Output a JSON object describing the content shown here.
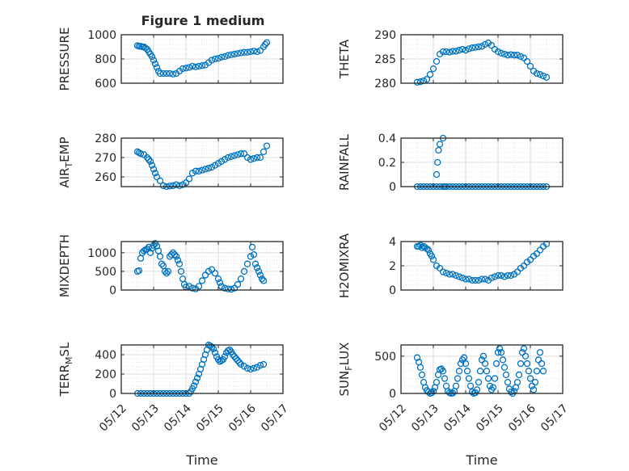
{
  "title": "Figure 1 medium",
  "colors": {
    "marker": "#0072BD",
    "axes": "#262626",
    "grid": "#dedede"
  },
  "chart_data": [
    {
      "type": "scatter",
      "ylabel": "PRESSURE",
      "ylim": [
        600,
        1000
      ],
      "yticks": [
        600,
        800,
        1000
      ],
      "xlim": [
        "05/12",
        "05/17"
      ],
      "xtick_labels": [],
      "grid": true,
      "marker": "open-circle",
      "series": [
        {
          "x": [
            12.5,
            12.55,
            12.6,
            12.65,
            12.7,
            12.75,
            12.8,
            12.85,
            12.9,
            12.95,
            13.0,
            13.05,
            13.1,
            13.15,
            13.2,
            13.3,
            13.4,
            13.5,
            13.6,
            13.7,
            13.8,
            13.9,
            14.0,
            14.1,
            14.2,
            14.3,
            14.4,
            14.5,
            14.6,
            14.7,
            14.8,
            14.9,
            15.0,
            15.1,
            15.2,
            15.3,
            15.4,
            15.5,
            15.6,
            15.7,
            15.8,
            15.9,
            16.0,
            16.1,
            16.2,
            16.3,
            16.4,
            16.45,
            16.5
          ],
          "y": [
            910,
            905,
            905,
            900,
            900,
            890,
            880,
            860,
            840,
            820,
            790,
            760,
            730,
            700,
            680,
            680,
            680,
            680,
            675,
            680,
            700,
            720,
            725,
            730,
            740,
            735,
            740,
            745,
            750,
            770,
            790,
            800,
            805,
            815,
            820,
            830,
            835,
            840,
            845,
            850,
            855,
            855,
            860,
            865,
            860,
            870,
            900,
            920,
            935
          ]
        }
      ]
    },
    {
      "type": "scatter",
      "ylabel": "THETA",
      "ylim": [
        280,
        290
      ],
      "yticks": [
        280,
        285,
        290
      ],
      "xlim": [
        "05/12",
        "05/17"
      ],
      "xtick_labels": [],
      "grid": true,
      "marker": "open-circle",
      "series": [
        {
          "x": [
            12.5,
            12.6,
            12.7,
            12.8,
            12.9,
            13.0,
            13.1,
            13.2,
            13.3,
            13.4,
            13.5,
            13.6,
            13.7,
            13.8,
            13.9,
            14.0,
            14.1,
            14.2,
            14.3,
            14.4,
            14.5,
            14.6,
            14.7,
            14.8,
            14.9,
            15.0,
            15.1,
            15.2,
            15.3,
            15.4,
            15.5,
            15.6,
            15.7,
            15.8,
            15.9,
            16.0,
            16.1,
            16.2,
            16.3,
            16.4,
            16.5
          ],
          "y": [
            280.2,
            280.3,
            280.5,
            280.8,
            281.8,
            283,
            284.5,
            286,
            286.5,
            286.5,
            286.4,
            286.6,
            286.6,
            286.8,
            287,
            286.8,
            287.1,
            287.3,
            287.4,
            287.5,
            287.6,
            288,
            288.3,
            287.8,
            287,
            286.5,
            286.2,
            286,
            285.8,
            285.9,
            285.8,
            285.8,
            285.5,
            285.2,
            284.5,
            283.5,
            282.5,
            282,
            281.8,
            281.5,
            281.2
          ]
        }
      ]
    },
    {
      "type": "scatter",
      "ylabel": "AIR_TEMP",
      "ylim": [
        255,
        280
      ],
      "yticks": [
        260,
        270,
        280
      ],
      "xlim": [
        "05/12",
        "05/17"
      ],
      "xtick_labels": [],
      "grid": true,
      "marker": "open-circle",
      "series": [
        {
          "x": [
            12.5,
            12.55,
            12.6,
            12.7,
            12.8,
            12.85,
            12.9,
            12.95,
            13.0,
            13.05,
            13.1,
            13.2,
            13.3,
            13.4,
            13.5,
            13.6,
            13.7,
            13.8,
            13.9,
            14.0,
            14.1,
            14.2,
            14.3,
            14.4,
            14.5,
            14.6,
            14.7,
            14.8,
            14.9,
            15.0,
            15.1,
            15.2,
            15.3,
            15.4,
            15.5,
            15.6,
            15.7,
            15.8,
            15.9,
            16.0,
            16.1,
            16.2,
            16.3,
            16.4,
            16.5
          ],
          "y": [
            273,
            272.5,
            272,
            271.5,
            270,
            269,
            268,
            266,
            264,
            262,
            260,
            258,
            255.5,
            255,
            255.3,
            255.5,
            256,
            255.5,
            256,
            257,
            259,
            262,
            263,
            263,
            263.5,
            264,
            264.5,
            265,
            266,
            267,
            268,
            269,
            270,
            270.5,
            271,
            271.5,
            272,
            272,
            270,
            269,
            269.5,
            270,
            270,
            273,
            276
          ]
        }
      ]
    },
    {
      "type": "scatter",
      "ylabel": "RAINFALL",
      "ylim": [
        0,
        0.4
      ],
      "yticks": [
        0,
        0.2,
        0.4
      ],
      "xlim": [
        "05/12",
        "05/17"
      ],
      "xtick_labels": [],
      "grid": true,
      "marker": "open-circle",
      "series": [
        {
          "x": [
            12.5,
            12.6,
            12.7,
            12.8,
            12.9,
            13.0,
            13.1,
            13.2,
            13.3,
            13.4,
            13.5,
            13.6,
            13.7,
            13.8,
            13.9,
            14.0,
            14.1,
            14.2,
            14.3,
            14.4,
            14.5,
            14.6,
            14.7,
            14.8,
            14.9,
            15.0,
            15.1,
            15.2,
            15.3,
            15.4,
            15.5,
            15.6,
            15.7,
            15.8,
            15.9,
            16.0,
            16.1,
            16.2,
            16.3,
            16.4,
            16.5,
            13.1,
            13.13,
            13.16,
            13.2,
            13.3,
            13.35
          ],
          "y": [
            0,
            0,
            0,
            0,
            0,
            0,
            0,
            0,
            0,
            0,
            0,
            0,
            0,
            0,
            0,
            0,
            0,
            0,
            0,
            0,
            0,
            0,
            0,
            0,
            0,
            0,
            0,
            0,
            0,
            0,
            0,
            0,
            0,
            0,
            0,
            0,
            0,
            0,
            0,
            0,
            0,
            0.1,
            0.2,
            0.3,
            0.35,
            0.4,
            0
          ]
        }
      ]
    },
    {
      "type": "scatter",
      "ylabel": "MIXDEPTH",
      "ylim": [
        0,
        1300
      ],
      "yticks": [
        0,
        500,
        1000
      ],
      "xlim": [
        "05/12",
        "05/17"
      ],
      "xtick_labels": [],
      "grid": true,
      "marker": "open-circle",
      "series": [
        {
          "x": [
            12.5,
            12.55,
            12.6,
            12.65,
            12.7,
            12.75,
            12.8,
            12.85,
            12.9,
            12.95,
            13.0,
            13.05,
            13.1,
            13.15,
            13.2,
            13.25,
            13.3,
            13.35,
            13.4,
            13.45,
            13.5,
            13.55,
            13.6,
            13.65,
            13.7,
            13.75,
            13.8,
            13.85,
            13.9,
            13.95,
            14.0,
            14.1,
            14.2,
            14.3,
            14.4,
            14.5,
            14.6,
            14.7,
            14.8,
            14.9,
            15.0,
            15.05,
            15.1,
            15.2,
            15.3,
            15.4,
            15.5,
            15.6,
            15.7,
            15.8,
            15.9,
            16.0,
            16.05,
            16.1,
            16.15,
            16.2,
            16.25,
            16.3,
            16.35,
            16.4
          ],
          "y": [
            500,
            520,
            850,
            1000,
            1050,
            1080,
            1100,
            1150,
            1000,
            1120,
            1200,
            1250,
            1180,
            1050,
            900,
            700,
            650,
            500,
            450,
            500,
            900,
            950,
            1000,
            950,
            900,
            800,
            700,
            500,
            300,
            150,
            80,
            100,
            50,
            30,
            100,
            250,
            400,
            500,
            550,
            450,
            300,
            200,
            100,
            50,
            30,
            20,
            50,
            150,
            300,
            500,
            700,
            900,
            1150,
            950,
            700,
            600,
            500,
            400,
            300,
            250
          ]
        }
      ]
    },
    {
      "type": "scatter",
      "ylabel": "H2OMIXRA",
      "ylim": [
        0,
        4
      ],
      "yticks": [
        0,
        2,
        4
      ],
      "xlim": [
        "05/12",
        "05/17"
      ],
      "xtick_labels": [],
      "grid": true,
      "marker": "open-circle",
      "series": [
        {
          "x": [
            12.5,
            12.55,
            12.6,
            12.65,
            12.7,
            12.75,
            12.8,
            12.85,
            12.9,
            12.95,
            13.0,
            13.1,
            13.2,
            13.3,
            13.4,
            13.5,
            13.6,
            13.7,
            13.8,
            13.9,
            14.0,
            14.1,
            14.2,
            14.3,
            14.4,
            14.5,
            14.6,
            14.7,
            14.8,
            14.9,
            15.0,
            15.1,
            15.2,
            15.3,
            15.4,
            15.5,
            15.6,
            15.7,
            15.8,
            15.9,
            16.0,
            16.1,
            16.2,
            16.3,
            16.4,
            16.5
          ],
          "y": [
            3.6,
            3.6,
            3.7,
            3.5,
            3.6,
            3.5,
            3.4,
            3.3,
            3,
            2.8,
            2.5,
            2,
            1.8,
            1.5,
            1.4,
            1.3,
            1.3,
            1.2,
            1.1,
            1,
            0.9,
            0.9,
            0.8,
            0.8,
            0.8,
            0.9,
            0.9,
            0.8,
            1,
            1.1,
            1.2,
            1.2,
            1.1,
            1.2,
            1.2,
            1.3,
            1.5,
            1.8,
            2,
            2.3,
            2.5,
            2.8,
            3,
            3.3,
            3.6,
            3.8
          ]
        }
      ]
    },
    {
      "type": "scatter",
      "ylabel": "TERR_MSL",
      "ylim": [
        0,
        500
      ],
      "yticks": [
        0,
        200,
        400
      ],
      "xlim": [
        "05/12",
        "05/17"
      ],
      "xtick_labels": [
        "05/12",
        "05/13",
        "05/14",
        "05/15",
        "05/16",
        "05/17"
      ],
      "xlabel": "Time",
      "grid": true,
      "marker": "open-circle",
      "series": [
        {
          "x": [
            12.5,
            12.6,
            12.7,
            12.8,
            12.9,
            13.0,
            13.1,
            13.2,
            13.3,
            13.4,
            13.5,
            13.6,
            13.7,
            13.8,
            13.9,
            14.0,
            14.1,
            14.15,
            14.2,
            14.25,
            14.3,
            14.35,
            14.4,
            14.45,
            14.5,
            14.55,
            14.6,
            14.65,
            14.7,
            14.75,
            14.8,
            14.85,
            14.9,
            14.95,
            15.0,
            15.05,
            15.1,
            15.15,
            15.2,
            15.25,
            15.3,
            15.35,
            15.4,
            15.45,
            15.5,
            15.55,
            15.6,
            15.65,
            15.7,
            15.8,
            15.9,
            16.0,
            16.1,
            16.2,
            16.3,
            16.4
          ],
          "y": [
            0,
            0,
            0,
            0,
            0,
            0,
            0,
            0,
            0,
            0,
            0,
            0,
            0,
            0,
            0,
            0,
            0,
            20,
            50,
            80,
            120,
            160,
            200,
            250,
            300,
            350,
            400,
            450,
            500,
            490,
            480,
            460,
            420,
            380,
            350,
            330,
            340,
            350,
            380,
            420,
            440,
            450,
            430,
            400,
            380,
            360,
            340,
            320,
            300,
            280,
            260,
            250,
            260,
            270,
            290,
            300
          ]
        }
      ]
    },
    {
      "type": "scatter",
      "ylabel": "SUN_FLUX",
      "ylim": [
        0,
        650
      ],
      "yticks": [
        0,
        500
      ],
      "xlim": [
        "05/12",
        "05/17"
      ],
      "xtick_labels": [
        "05/12",
        "05/13",
        "05/14",
        "05/15",
        "05/16",
        "05/17"
      ],
      "xlabel": "Time",
      "grid": true,
      "marker": "open-circle",
      "series": [
        {
          "x": [
            12.5,
            12.55,
            12.6,
            12.65,
            12.7,
            12.75,
            12.8,
            12.85,
            12.9,
            12.95,
            13.0,
            13.05,
            13.1,
            13.15,
            13.2,
            13.25,
            13.3,
            13.35,
            13.4,
            13.45,
            13.5,
            13.55,
            13.6,
            13.65,
            13.7,
            13.75,
            13.8,
            13.85,
            13.9,
            13.95,
            14.0,
            14.05,
            14.1,
            14.15,
            14.2,
            14.25,
            14.3,
            14.35,
            14.4,
            14.45,
            14.5,
            14.55,
            14.6,
            14.65,
            14.7,
            14.75,
            14.8,
            14.85,
            14.9,
            14.95,
            15.0,
            15.05,
            15.1,
            15.15,
            15.2,
            15.25,
            15.3,
            15.35,
            15.4,
            15.45,
            15.5,
            15.55,
            15.6,
            15.65,
            15.7,
            15.75,
            15.8,
            15.85,
            15.9,
            15.95,
            16.0,
            16.05,
            16.1,
            16.15,
            16.2,
            16.25,
            16.3,
            16.35,
            16.4
          ],
          "y": [
            480,
            420,
            350,
            250,
            150,
            80,
            40,
            20,
            0,
            10,
            30,
            80,
            150,
            250,
            320,
            330,
            300,
            200,
            100,
            30,
            10,
            0,
            5,
            30,
            100,
            200,
            300,
            400,
            450,
            480,
            400,
            300,
            200,
            100,
            20,
            0,
            10,
            50,
            150,
            300,
            450,
            500,
            400,
            300,
            200,
            100,
            50,
            80,
            200,
            400,
            550,
            600,
            550,
            450,
            350,
            250,
            150,
            60,
            20,
            0,
            30,
            80,
            150,
            250,
            400,
            550,
            600,
            500,
            400,
            300,
            200,
            100,
            50,
            150,
            300,
            450,
            550,
            400,
            300
          ]
        }
      ]
    }
  ]
}
